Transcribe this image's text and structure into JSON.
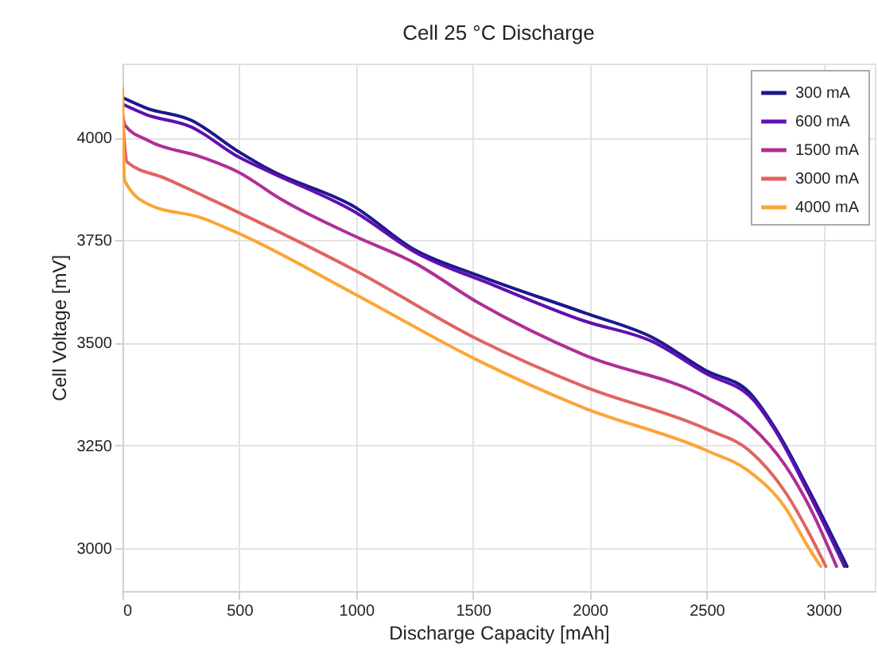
{
  "chart_data": {
    "type": "line",
    "title": "Cell 25 °C Discharge",
    "xlabel": "Discharge Capacity [mAh]",
    "ylabel": "Cell Voltage [mV]",
    "xlim": [
      0,
      3220
    ],
    "xticks": [
      0,
      500,
      1000,
      1500,
      2000,
      2500,
      3000
    ],
    "ylim": [
      2895,
      4180
    ],
    "yticks": [
      3000,
      3250,
      3500,
      3750,
      4000
    ],
    "grid": true,
    "legend": "top right",
    "marker": "none",
    "line_style": "solid",
    "series": [
      {
        "name": "300 mA",
        "color": "#1a1a8c",
        "x": [
          0,
          100,
          293,
          498,
          634,
          996,
          1248,
          1521,
          1976,
          2271,
          2497,
          2681,
          2795,
          2931,
          3101
        ],
        "values": [
          4097,
          4072,
          4042,
          3965,
          3920,
          3830,
          3727,
          3664,
          3573,
          3512,
          3432,
          3380,
          3290,
          3148,
          2955
        ]
      },
      {
        "name": "600 mA",
        "color": "#5e10b0",
        "x": [
          0,
          100,
          293,
          498,
          634,
          996,
          1248,
          1589,
          1976,
          2271,
          2497,
          2701,
          2795,
          2931,
          3090
        ],
        "values": [
          4081,
          4056,
          4026,
          3952,
          3915,
          3818,
          3722,
          3640,
          3553,
          3502,
          3425,
          3360,
          3285,
          3140,
          2955
        ]
      },
      {
        "name": "1500 mA",
        "color": "#b02f96",
        "x": [
          0,
          10,
          112,
          339,
          498,
          680,
          996,
          1248,
          1521,
          1976,
          2497,
          2681,
          2838,
          2954,
          3056
        ],
        "values": [
          4060,
          4030,
          3992,
          3952,
          3915,
          3849,
          3759,
          3695,
          3598,
          3470,
          3367,
          3302,
          3200,
          3085,
          2955
        ]
      },
      {
        "name": "3000 mA",
        "color": "#e1645f",
        "x": [
          0,
          20,
          180,
          498,
          996,
          1521,
          1976,
          2497,
          2681,
          2838,
          2954,
          3010
        ],
        "values": [
          4050,
          3940,
          3901,
          3817,
          3676,
          3508,
          3393,
          3290,
          3238,
          3135,
          3019,
          2955
        ]
      },
      {
        "name": "4000 mA",
        "color": "#fca537",
        "x": [
          0,
          9,
          111,
          339,
          498,
          996,
          1521,
          1976,
          2497,
          2681,
          2838,
          2931,
          2988
        ],
        "values": [
          4120,
          3895,
          3837,
          3804,
          3766,
          3618,
          3457,
          3341,
          3238,
          3187,
          3097,
          3006,
          2955
        ]
      }
    ]
  }
}
